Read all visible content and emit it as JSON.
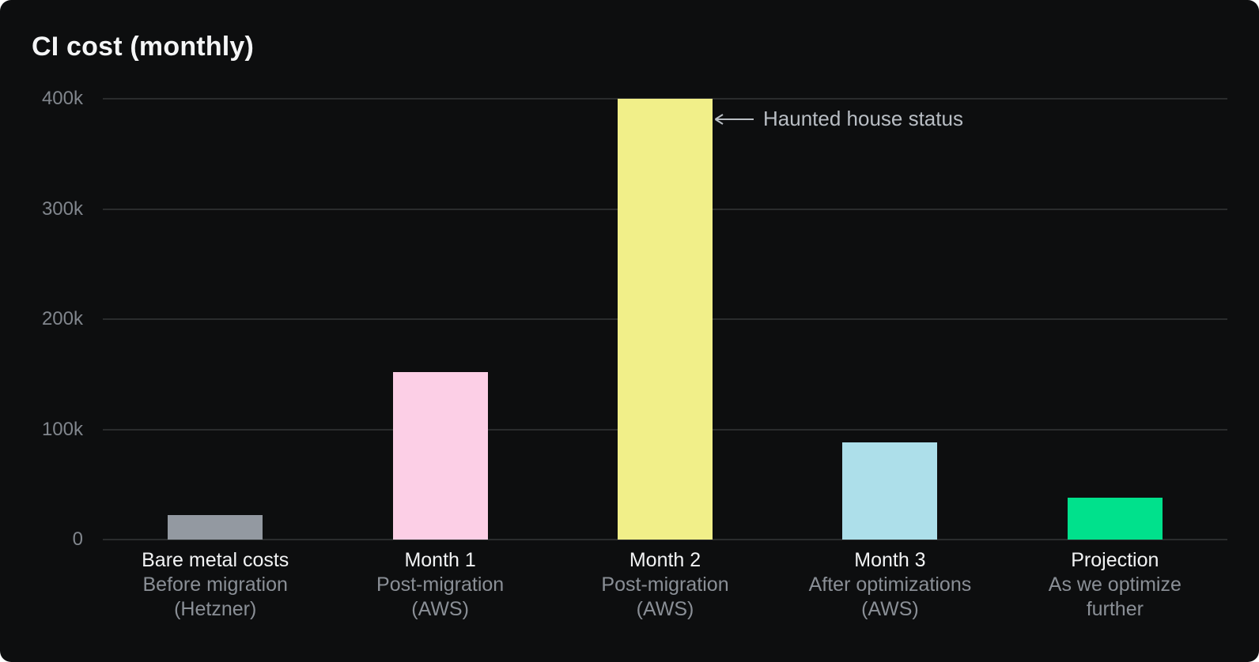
{
  "window": {
    "page_background": "#ffffff",
    "card_background": "#0d0e0f"
  },
  "theme": {
    "title_color": "#f4f5f6",
    "tick_color": "#81868d",
    "category_color": "#f2f3f4",
    "sub_color": "#8a8f96",
    "annotation_color": "#b9bec4",
    "gridline_color": "#2a2c2d"
  },
  "chart_data": {
    "type": "bar",
    "title": "CI cost (monthly)",
    "xlabel": "",
    "ylabel": "",
    "ylim": [
      0,
      400000
    ],
    "ymax_value": 400000,
    "yticks": [
      "400k",
      "300k",
      "200k",
      "100k",
      "0"
    ],
    "grid": "horizontal",
    "legend": "none",
    "categories": [
      {
        "label": "Bare metal costs",
        "sub1": "Before migration",
        "sub2": "(Hetzner)"
      },
      {
        "label": "Month 1",
        "sub1": "Post-migration",
        "sub2": "(AWS)"
      },
      {
        "label": "Month 2",
        "sub1": "Post-migration",
        "sub2": "(AWS)"
      },
      {
        "label": "Month 3",
        "sub1": "After optimizations",
        "sub2": "(AWS)"
      },
      {
        "label": "Projection",
        "sub1": "As we optimize",
        "sub2": "further"
      }
    ],
    "values": [
      22000,
      152000,
      400000,
      88000,
      38000
    ],
    "colors": [
      "#9399a1",
      "#fccfe6",
      "#f1ef89",
      "#addfea",
      "#00e18c"
    ],
    "annotation": {
      "text": "Haunted house status",
      "points_to": "Month 2 bar",
      "arrow_direction": "left"
    }
  }
}
